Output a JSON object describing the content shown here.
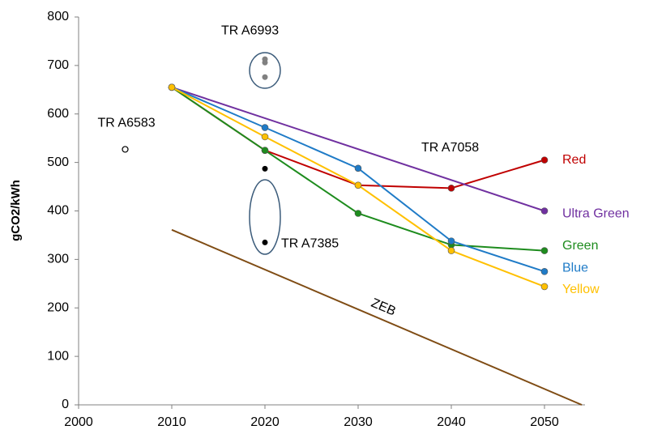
{
  "chart_data": {
    "type": "line",
    "y_label": "gCO2/kWh",
    "xlim": [
      2000,
      2054
    ],
    "xticks": [
      2000,
      2010,
      2020,
      2030,
      2040,
      2050
    ],
    "ylim": [
      0,
      800
    ],
    "yticks": [
      0,
      100,
      200,
      300,
      400,
      500,
      600,
      700,
      800
    ],
    "grid": false,
    "series": [
      {
        "name": "Red",
        "color": "#c00000",
        "x": [
          2010,
          2020,
          2030,
          2040,
          2050
        ],
        "values": [
          655,
          525,
          453,
          447,
          505
        ]
      },
      {
        "name": "Ultra Green",
        "color": "#7030a0",
        "x": [
          2010,
          2050
        ],
        "values": [
          655,
          400
        ]
      },
      {
        "name": "Green",
        "color": "#1e8c1e",
        "x": [
          2010,
          2020,
          2030,
          2040,
          2050
        ],
        "values": [
          655,
          525,
          395,
          330,
          318
        ]
      },
      {
        "name": "Blue",
        "color": "#1f7bc7",
        "x": [
          2010,
          2020,
          2030,
          2040,
          2050
        ],
        "values": [
          655,
          572,
          488,
          338,
          275
        ]
      },
      {
        "name": "Yellow",
        "color": "#ffc000",
        "x": [
          2010,
          2020,
          2030,
          2040,
          2050
        ],
        "values": [
          655,
          553,
          453,
          318,
          244
        ]
      }
    ],
    "zeb": {
      "name": "ZEB",
      "color": "#7f4c14",
      "x": [
        2010,
        2054
      ],
      "values": [
        361,
        0
      ]
    },
    "points": [
      {
        "name": "TR A6993",
        "color": "#808080",
        "x": [
          2020,
          2020,
          2020
        ],
        "values": [
          713,
          706,
          676
        ]
      },
      {
        "name": "TR A7385",
        "color": "#000000",
        "x": [
          2020,
          2020
        ],
        "values": [
          487,
          335
        ]
      },
      {
        "name": "TR A6583",
        "color": "#ffffff",
        "x": [
          2005
        ],
        "values": [
          527
        ]
      }
    ],
    "annotations": [
      "TR A7058"
    ]
  }
}
